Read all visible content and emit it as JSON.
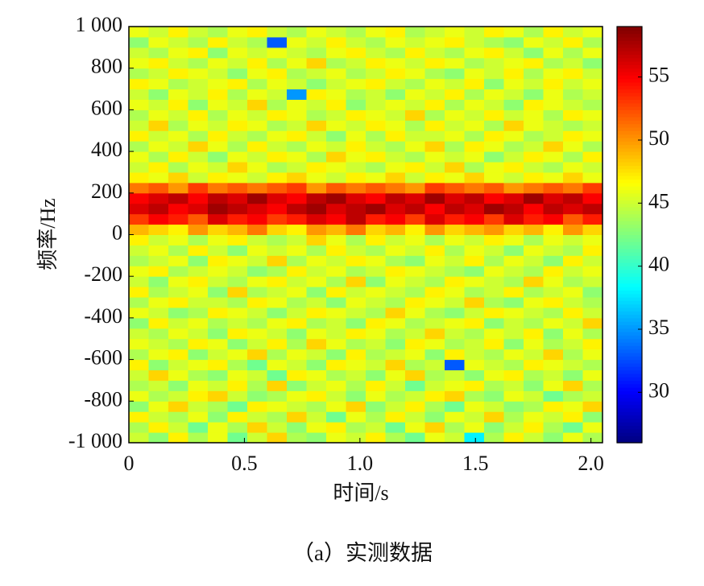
{
  "chart_data": {
    "type": "heatmap",
    "caption": "（a）实测数据",
    "xlabel": "时间/s",
    "ylabel": "频率/Hz",
    "xlim": [
      0,
      2.05
    ],
    "ylim": [
      -1000,
      1000
    ],
    "xticks": [
      0,
      0.5,
      {
        "value": 1,
        "label": "1.0"
      },
      1.5,
      {
        "value": 2,
        "label": "2.0"
      }
    ],
    "yticks": [
      {
        "value": -1000,
        "label": "-1 000"
      },
      -800,
      -600,
      -400,
      -200,
      0,
      200,
      400,
      600,
      800,
      {
        "value": 1000,
        "label": "1 000"
      }
    ],
    "clim": [
      26,
      59
    ],
    "cticks": [
      30,
      35,
      40,
      45,
      50,
      55
    ],
    "colormap": "jet",
    "z": [
      [
        45,
        43,
        47,
        44,
        46,
        42,
        45,
        48,
        44,
        43,
        46,
        45,
        47,
        44,
        42,
        46,
        45,
        38,
        44,
        47,
        45,
        43,
        46,
        44
      ],
      [
        44,
        47,
        45,
        42,
        46,
        44,
        48,
        45,
        43,
        46,
        47,
        44,
        45,
        42,
        46,
        48,
        44,
        46,
        43,
        45,
        47,
        44,
        42,
        46
      ],
      [
        47,
        45,
        44,
        46,
        43,
        47,
        45,
        44,
        48,
        45,
        42,
        46,
        44,
        47,
        45,
        43,
        46,
        45,
        48,
        44,
        46,
        45,
        47,
        43
      ],
      [
        43,
        46,
        48,
        45,
        44,
        42,
        47,
        46,
        45,
        44,
        46,
        48,
        43,
        45,
        47,
        44,
        42,
        46,
        45,
        43,
        44,
        47,
        46,
        48
      ],
      [
        46,
        44,
        45,
        47,
        48,
        45,
        43,
        44,
        46,
        47,
        45,
        43,
        46,
        44,
        45,
        47,
        48,
        44,
        43,
        46,
        45,
        42,
        44,
        45
      ],
      [
        44,
        45,
        43,
        46,
        45,
        47,
        44,
        48,
        43,
        45,
        46,
        44,
        47,
        45,
        42,
        45,
        46,
        47,
        44,
        45,
        43,
        46,
        48,
        44
      ],
      [
        45,
        48,
        46,
        44,
        43,
        46,
        45,
        42,
        47,
        46,
        44,
        45,
        43,
        46,
        48,
        44,
        45,
        43,
        46,
        47,
        44,
        45,
        43,
        46
      ],
      [
        47,
        43,
        45,
        46,
        47,
        44,
        42,
        46,
        45,
        43,
        47,
        46,
        45,
        48,
        44,
        45,
        33,
        46,
        45,
        44,
        47,
        46,
        45,
        44
      ],
      [
        44,
        46,
        47,
        43,
        45,
        46,
        48,
        44,
        46,
        45,
        43,
        47,
        44,
        45,
        46,
        43,
        47,
        45,
        44,
        46,
        45,
        48,
        44,
        46
      ],
      [
        46,
        45,
        44,
        47,
        46,
        43,
        45,
        47,
        44,
        48,
        46,
        44,
        45,
        43,
        47,
        46,
        44,
        45,
        47,
        43,
        46,
        44,
        45,
        47
      ],
      [
        45,
        44,
        46,
        45,
        43,
        47,
        46,
        45,
        43,
        46,
        45,
        47,
        46,
        44,
        45,
        48,
        45,
        44,
        46,
        45,
        47,
        43,
        46,
        44
      ],
      [
        43,
        47,
        45,
        46,
        44,
        45,
        44,
        46,
        47,
        44,
        45,
        43,
        47,
        46,
        44,
        45,
        46,
        47,
        43,
        45,
        44,
        46,
        45,
        48
      ],
      [
        46,
        45,
        43,
        44,
        47,
        46,
        45,
        43,
        45,
        47,
        46,
        45,
        44,
        48,
        46,
        44,
        43,
        45,
        47,
        46,
        45,
        44,
        47,
        45
      ],
      [
        44,
        46,
        47,
        45,
        45,
        44,
        47,
        46,
        44,
        45,
        43,
        46,
        45,
        44,
        47,
        46,
        45,
        48,
        44,
        43,
        46,
        47,
        45,
        44
      ],
      [
        47,
        44,
        45,
        46,
        43,
        48,
        44,
        45,
        46,
        43,
        47,
        45,
        46,
        45,
        44,
        47,
        46,
        44,
        45,
        47,
        44,
        45,
        46,
        43
      ],
      [
        45,
        43,
        46,
        47,
        45,
        44,
        46,
        47,
        45,
        46,
        44,
        48,
        43,
        46,
        45,
        44,
        47,
        46,
        45,
        44,
        48,
        46,
        44,
        45
      ],
      [
        46,
        47,
        44,
        45,
        46,
        45,
        43,
        44,
        47,
        45,
        46,
        44,
        45,
        47,
        46,
        45,
        44,
        43,
        46,
        45,
        44,
        47,
        45,
        46
      ],
      [
        44,
        45,
        46,
        43,
        47,
        46,
        45,
        48,
        44,
        46,
        45,
        47,
        46,
        44,
        43,
        46,
        45,
        47,
        44,
        46,
        45,
        43,
        47,
        45
      ],
      [
        45,
        46,
        44,
        47,
        45,
        43,
        46,
        45,
        46,
        44,
        47,
        45,
        44,
        46,
        45,
        47,
        44,
        46,
        45,
        43,
        46,
        45,
        44,
        47
      ],
      [
        47,
        45,
        46,
        44,
        46,
        47,
        45,
        44,
        45,
        48,
        46,
        44,
        47,
        45,
        46,
        44,
        46,
        45,
        47,
        46,
        44,
        46,
        45,
        46
      ],
      [
        49,
        48,
        47,
        50,
        48,
        49,
        51,
        48,
        47,
        50,
        49,
        51,
        48,
        49,
        47,
        50,
        48,
        49,
        50,
        48,
        49,
        47,
        50,
        48
      ],
      [
        53,
        55,
        54,
        52,
        56,
        54,
        55,
        53,
        54,
        56,
        55,
        57,
        54,
        55,
        53,
        56,
        54,
        55,
        53,
        56,
        54,
        55,
        52,
        54
      ],
      [
        56,
        57,
        55,
        56,
        58,
        57,
        56,
        55,
        57,
        58,
        56,
        57,
        58,
        56,
        57,
        55,
        57,
        56,
        58,
        57,
        55,
        57,
        56,
        57
      ],
      [
        55,
        56,
        57,
        55,
        57,
        56,
        58,
        56,
        55,
        57,
        58,
        56,
        55,
        57,
        56,
        58,
        56,
        57,
        55,
        56,
        58,
        56,
        57,
        55
      ],
      [
        51,
        52,
        50,
        53,
        51,
        52,
        51,
        52,
        53,
        50,
        52,
        51,
        52,
        51,
        50,
        53,
        52,
        51,
        52,
        50,
        51,
        52,
        51,
        53
      ],
      [
        47,
        46,
        48,
        45,
        47,
        46,
        45,
        47,
        48,
        46,
        45,
        47,
        46,
        48,
        45,
        47,
        46,
        48,
        46,
        45,
        47,
        46,
        48,
        46
      ],
      [
        45,
        47,
        44,
        46,
        45,
        48,
        46,
        44,
        45,
        47,
        46,
        45,
        44,
        46,
        47,
        45,
        48,
        44,
        46,
        47,
        45,
        44,
        46,
        45
      ],
      [
        46,
        44,
        47,
        45,
        43,
        46,
        45,
        47,
        46,
        44,
        48,
        46,
        47,
        45,
        44,
        46,
        45,
        46,
        43,
        45,
        47,
        46,
        44,
        47
      ],
      [
        44,
        46,
        45,
        48,
        46,
        44,
        47,
        45,
        44,
        46,
        45,
        47,
        45,
        44,
        46,
        48,
        44,
        47,
        46,
        44,
        45,
        48,
        46,
        44
      ],
      [
        47,
        45,
        46,
        44,
        47,
        45,
        44,
        46,
        47,
        45,
        43,
        46,
        44,
        47,
        45,
        45,
        46,
        44,
        47,
        46,
        44,
        45,
        47,
        46
      ],
      [
        45,
        48,
        44,
        46,
        45,
        47,
        46,
        44,
        45,
        48,
        46,
        45,
        47,
        46,
        44,
        47,
        45,
        46,
        44,
        48,
        46,
        45,
        44,
        45
      ],
      [
        44,
        46,
        45,
        47,
        44,
        46,
        45,
        47,
        46,
        44,
        45,
        47,
        46,
        45,
        48,
        44,
        46,
        45,
        47,
        45,
        46,
        44,
        47,
        46
      ],
      [
        46,
        45,
        47,
        43,
        46,
        45,
        48,
        44,
        46,
        45,
        47,
        43,
        45,
        46,
        45,
        47,
        44,
        46,
        45,
        43,
        47,
        46,
        45,
        44
      ],
      [
        45,
        43,
        46,
        45,
        47,
        44,
        46,
        45,
        35,
        47,
        46,
        44,
        45,
        43,
        46,
        45,
        47,
        44,
        46,
        45,
        43,
        46,
        44,
        45
      ],
      [
        47,
        46,
        44,
        45,
        46,
        47,
        44,
        46,
        45,
        43,
        45,
        46,
        47,
        45,
        44,
        46,
        45,
        47,
        43,
        46,
        45,
        47,
        45,
        46
      ],
      [
        44,
        45,
        47,
        46,
        45,
        43,
        46,
        47,
        44,
        45,
        46,
        44,
        45,
        47,
        46,
        44,
        43,
        46,
        45,
        47,
        44,
        46,
        47,
        45
      ],
      [
        46,
        47,
        45,
        44,
        46,
        45,
        47,
        44,
        46,
        48,
        44,
        45,
        47,
        46,
        45,
        47,
        46,
        44,
        45,
        46,
        47,
        44,
        45,
        43
      ],
      [
        45,
        44,
        46,
        47,
        43,
        46,
        45,
        46,
        45,
        44,
        46,
        47,
        45,
        44,
        47,
        45,
        44,
        46,
        47,
        45,
        43,
        46,
        44,
        46
      ],
      [
        43,
        46,
        45,
        44,
        47,
        45,
        44,
        33,
        46,
        45,
        47,
        45,
        44,
        46,
        45,
        46,
        47,
        45,
        44,
        43,
        46,
        45,
        47,
        44
      ],
      [
        46,
        45,
        47,
        45,
        44,
        46,
        47,
        45,
        44,
        46,
        45,
        44,
        46,
        47,
        44,
        45,
        46,
        45,
        47,
        46,
        44,
        47,
        45,
        46
      ]
    ]
  }
}
